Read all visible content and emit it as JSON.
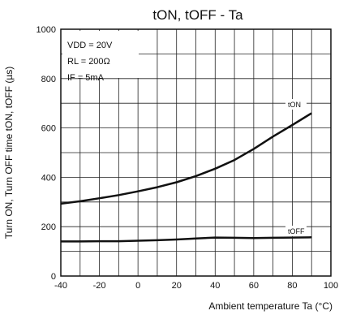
{
  "chart_data": {
    "type": "line",
    "title": "tON, tOFF - Ta",
    "xlabel": "Ambient temperature Ta (°C)",
    "ylabel": "Turn ON, Turn OFF time tON, tOFF (µs)",
    "xlim": [
      -40,
      100
    ],
    "ylim": [
      0,
      1000
    ],
    "x_ticks": [
      "-40",
      "-20",
      "0",
      "20",
      "40",
      "60",
      "80",
      "100"
    ],
    "y_ticks": [
      "0",
      "200",
      "400",
      "600",
      "800",
      "1000"
    ],
    "grid": true,
    "legend": "none",
    "conditions": [
      "VDD = 20V",
      "RL = 200Ω",
      "IF = 5mA"
    ],
    "series": [
      {
        "name": "tON",
        "x": [
          -40,
          -30,
          -20,
          -10,
          0,
          10,
          20,
          30,
          40,
          50,
          60,
          70,
          80,
          90
        ],
        "y": [
          293,
          303,
          315,
          328,
          343,
          360,
          380,
          405,
          435,
          470,
          515,
          565,
          612,
          660
        ]
      },
      {
        "name": "tOFF",
        "x": [
          -40,
          -30,
          -20,
          -10,
          0,
          10,
          20,
          30,
          40,
          50,
          60,
          70,
          80,
          90
        ],
        "y": [
          140,
          140,
          141,
          141,
          143,
          145,
          148,
          152,
          156,
          155,
          154,
          155,
          156,
          157
        ]
      }
    ]
  }
}
